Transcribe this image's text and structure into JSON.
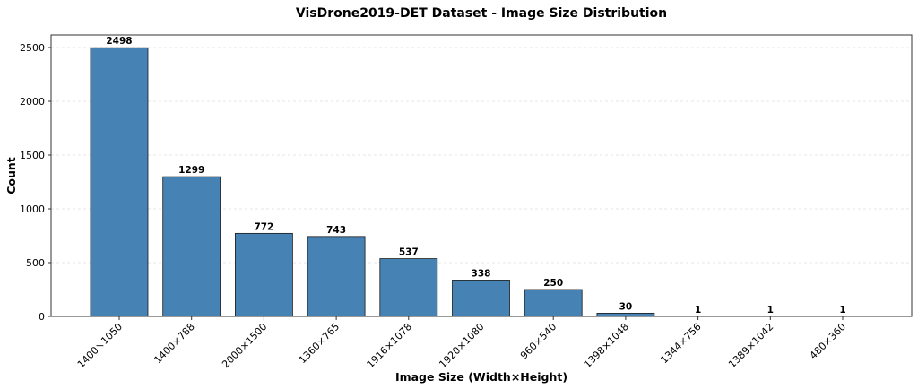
{
  "chart_data": {
    "type": "bar",
    "title": "VisDrone2019-DET Dataset - Image Size Distribution",
    "xlabel": "Image Size (Width×Height)",
    "ylabel": "Count",
    "categories": [
      "1400×1050",
      "1400×788",
      "2000×1500",
      "1360×765",
      "1916×1078",
      "1920×1080",
      "960×540",
      "1398×1048",
      "1344×756",
      "1389×1042",
      "480×360"
    ],
    "values": [
      2498,
      1299,
      772,
      743,
      537,
      338,
      250,
      30,
      1,
      1,
      1
    ],
    "ylim": [
      0,
      2620
    ],
    "yticks": [
      0,
      500,
      1000,
      1500,
      2000,
      2500
    ],
    "grid": "horizontal dashed",
    "bar_color": "#4682b4",
    "bar_edge_color": "#1a1a1a",
    "legend": null
  }
}
